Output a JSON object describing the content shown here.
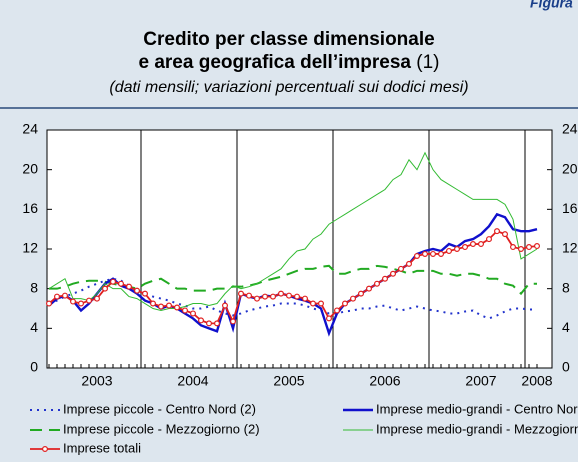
{
  "figure_label": "Figura",
  "chart_data": {
    "type": "line",
    "title": [
      "Credito per classe dimensionale",
      "e area geografica dell’impresa"
    ],
    "title_note": "(1)",
    "subtitle": "(dati mensili; variazioni percentuali sui dodici mesi)",
    "categories": [
      null,
      null,
      null,
      null,
      null,
      null,
      "2003",
      null,
      null,
      null,
      null,
      null,
      null,
      null,
      null,
      null,
      null,
      null,
      "2004",
      null,
      null,
      null,
      null,
      null,
      null,
      null,
      null,
      null,
      null,
      null,
      "2005",
      null,
      null,
      null,
      null,
      null,
      null,
      null,
      null,
      null,
      null,
      null,
      "2006",
      null,
      null,
      null,
      null,
      null,
      null,
      null,
      null,
      null,
      null,
      null,
      "2007",
      null,
      null,
      null,
      null,
      null,
      null,
      "2008"
    ],
    "ylim": [
      0,
      24
    ],
    "yticks": [
      0,
      4,
      8,
      12,
      16,
      20,
      24
    ],
    "series": [
      {
        "name": "Imprese piccole - Centro Nord (2)",
        "color": "#2233cc",
        "dash": "dotted",
        "values": [
          6.5,
          6.8,
          7.2,
          7.5,
          7.8,
          8.2,
          8.5,
          8.8,
          9.0,
          8.8,
          8.3,
          7.8,
          7.5,
          7.2,
          7.0,
          6.8,
          6.5,
          6.3,
          6.0,
          6.0,
          6.2,
          5.8,
          5.5,
          5.3,
          5.5,
          5.8,
          6.0,
          6.2,
          6.3,
          6.5,
          6.5,
          6.5,
          6.3,
          6.0,
          5.8,
          5.5,
          5.5,
          5.7,
          5.8,
          6.0,
          6.0,
          6.2,
          6.3,
          6.0,
          5.8,
          6.0,
          6.2,
          6.0,
          5.8,
          5.7,
          5.5,
          5.5,
          5.7,
          5.8,
          5.3,
          5.0,
          5.3,
          5.7,
          6.0,
          6.0,
          5.9,
          5.9
        ]
      },
      {
        "name": "Imprese piccole - Mezzogiorno (2)",
        "color": "#22aa22",
        "dash": "dashed",
        "values": [
          8.0,
          8.0,
          8.2,
          8.5,
          8.7,
          8.8,
          8.8,
          8.7,
          8.5,
          8.3,
          8.2,
          8.0,
          8.5,
          8.8,
          9.0,
          8.5,
          8.0,
          8.0,
          7.8,
          7.8,
          7.8,
          8.0,
          8.0,
          8.2,
          8.2,
          8.3,
          8.5,
          8.8,
          9.0,
          9.2,
          9.5,
          9.8,
          10.0,
          10.0,
          10.2,
          10.3,
          9.5,
          9.5,
          9.8,
          10.0,
          10.0,
          10.3,
          10.2,
          10.0,
          9.8,
          9.5,
          9.8,
          9.8,
          9.8,
          9.5,
          9.5,
          9.3,
          9.5,
          9.5,
          9.3,
          9.0,
          9.0,
          8.5,
          8.3,
          7.5,
          8.5,
          8.5
        ]
      },
      {
        "name": "Imprese medio-grandi - Centro Nord",
        "color": "#1010cc",
        "dash": "solid",
        "values": [
          6.3,
          7.0,
          7.3,
          6.8,
          5.8,
          6.5,
          7.5,
          8.5,
          9.0,
          8.3,
          8.0,
          7.5,
          6.8,
          6.5,
          6.0,
          6.3,
          6.0,
          5.5,
          5.0,
          4.3,
          4.0,
          3.7,
          6.5,
          4.0,
          7.5,
          7.2,
          7.0,
          7.3,
          7.2,
          7.5,
          7.3,
          7.0,
          6.8,
          6.5,
          6.0,
          3.5,
          5.5,
          6.5,
          7.0,
          7.5,
          8.0,
          8.5,
          9.0,
          9.5,
          10.0,
          10.5,
          11.5,
          11.8,
          12.0,
          11.8,
          12.5,
          12.2,
          12.8,
          13.0,
          13.5,
          14.3,
          15.5,
          15.2,
          14.0,
          13.8,
          13.8,
          14.0
        ]
      },
      {
        "name": "Imprese medio-grandi - Mezzogiorno",
        "color": "#33bb33",
        "dash": "thin",
        "values": [
          8.0,
          8.5,
          9.0,
          7.0,
          7.0,
          6.8,
          7.5,
          8.5,
          8.0,
          8.0,
          7.2,
          7.0,
          6.5,
          6.0,
          5.8,
          6.0,
          6.0,
          6.2,
          6.5,
          6.5,
          6.3,
          6.5,
          7.5,
          8.3,
          8.0,
          8.2,
          8.5,
          9.0,
          9.5,
          10.0,
          11.0,
          11.8,
          12.0,
          13.0,
          13.5,
          14.5,
          15.0,
          15.5,
          16.0,
          16.5,
          17.0,
          17.5,
          18.0,
          19.0,
          19.5,
          21.0,
          20.0,
          21.7,
          20.0,
          19.0,
          18.5,
          18.0,
          17.5,
          17.0,
          17.0,
          17.0,
          17.0,
          16.5,
          15.0,
          11.0,
          11.5,
          12.0
        ]
      },
      {
        "name": "Imprese totali",
        "color": "#e02020",
        "dash": "solid",
        "marker": "circle",
        "values": [
          6.5,
          7.2,
          7.3,
          6.7,
          6.5,
          6.8,
          7.0,
          8.0,
          8.7,
          8.5,
          8.2,
          7.8,
          7.5,
          6.5,
          6.2,
          6.3,
          6.1,
          5.8,
          5.5,
          4.8,
          4.5,
          4.5,
          6.3,
          4.7,
          7.5,
          7.3,
          7.0,
          7.2,
          7.2,
          7.5,
          7.3,
          7.2,
          7.0,
          6.5,
          6.5,
          5.0,
          5.8,
          6.5,
          7.0,
          7.5,
          8.0,
          8.5,
          9.0,
          9.5,
          10.0,
          10.5,
          11.3,
          11.5,
          11.5,
          11.5,
          11.8,
          12.0,
          12.2,
          12.5,
          12.5,
          13.0,
          13.8,
          13.5,
          12.2,
          12.0,
          12.2,
          12.3
        ]
      }
    ]
  }
}
